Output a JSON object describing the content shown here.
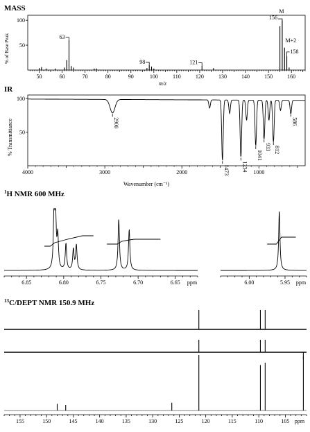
{
  "chart_data": [
    {
      "type": "bar",
      "title": "MASS",
      "xlabel": "m/z",
      "ylabel": "% of Base Peak",
      "xlim": [
        45,
        166
      ],
      "ylim": [
        0,
        110
      ],
      "x_ticks": [
        50,
        60,
        70,
        80,
        90,
        100,
        110,
        120,
        130,
        140,
        150,
        160
      ],
      "y_ticks": [
        50,
        100
      ],
      "peaks": [
        {
          "x": 50,
          "y": 4
        },
        {
          "x": 51,
          "y": 6
        },
        {
          "x": 53,
          "y": 3
        },
        {
          "x": 57,
          "y": 3
        },
        {
          "x": 61,
          "y": 5
        },
        {
          "x": 62,
          "y": 20
        },
        {
          "x": 63,
          "y": 60
        },
        {
          "x": 64,
          "y": 8
        },
        {
          "x": 65,
          "y": 5
        },
        {
          "x": 74,
          "y": 3
        },
        {
          "x": 75,
          "y": 3
        },
        {
          "x": 97,
          "y": 4
        },
        {
          "x": 98,
          "y": 10
        },
        {
          "x": 99,
          "y": 7
        },
        {
          "x": 100,
          "y": 3
        },
        {
          "x": 121,
          "y": 9
        },
        {
          "x": 126,
          "y": 4
        },
        {
          "x": 155,
          "y": 88
        },
        {
          "x": 156,
          "y": 100
        },
        {
          "x": 157,
          "y": 45
        },
        {
          "x": 158,
          "y": 28
        },
        {
          "x": 159,
          "y": 5
        }
      ],
      "annotations": [
        {
          "x": 63,
          "text": "63"
        },
        {
          "x": 98,
          "text": "98"
        },
        {
          "x": 121,
          "text": "121"
        },
        {
          "x": 156,
          "text": "156"
        },
        {
          "x": 158,
          "text": "158"
        }
      ],
      "labels_extra": {
        "molecular_ion": "M",
        "isotope": "M+2"
      }
    },
    {
      "type": "line",
      "title": "IR",
      "xlabel": "Wavenumber (cm⁻¹)",
      "ylabel": "% Transmittance",
      "xlim": [
        4000,
        400
      ],
      "ylim": [
        0,
        105
      ],
      "x_ticks": [
        4000,
        3000,
        2000,
        1000
      ],
      "y_ticks": [
        50,
        100
      ],
      "bands": [
        {
          "x": 2900,
          "depth": 20,
          "label": "2900"
        },
        {
          "x": 1640,
          "depth": 12,
          "label": ""
        },
        {
          "x": 1473,
          "depth": 90,
          "label": "1473"
        },
        {
          "x": 1380,
          "depth": 20,
          "label": ""
        },
        {
          "x": 1234,
          "depth": 85,
          "label": "1234"
        },
        {
          "x": 1160,
          "depth": 30,
          "label": ""
        },
        {
          "x": 1041,
          "depth": 68,
          "label": "1041"
        },
        {
          "x": 933,
          "depth": 58,
          "label": "933"
        },
        {
          "x": 870,
          "depth": 30,
          "label": ""
        },
        {
          "x": 812,
          "depth": 62,
          "label": "812"
        },
        {
          "x": 720,
          "depth": 15,
          "label": ""
        },
        {
          "x": 586,
          "depth": 20,
          "label": "586"
        }
      ]
    },
    {
      "type": "line",
      "title": "H NMR 600 MHz",
      "title_superscript": "1",
      "xlabel": "ppm",
      "panels": [
        {
          "xlim": [
            6.88,
            6.62
          ],
          "x_ticks": [
            6.85,
            6.8,
            6.75,
            6.7,
            6.65
          ]
        },
        {
          "xlim": [
            6.04,
            5.92
          ],
          "x_ticks": [
            6.0,
            5.95
          ]
        }
      ],
      "peaks": [
        {
          "x": 6.813,
          "h": 0.9
        },
        {
          "x": 6.811,
          "h": 0.9
        },
        {
          "x": 6.808,
          "h": 0.55
        },
        {
          "x": 6.797,
          "h": 0.45
        },
        {
          "x": 6.787,
          "h": 0.35
        },
        {
          "x": 6.783,
          "h": 0.42
        },
        {
          "x": 6.726,
          "h": 0.88
        },
        {
          "x": 6.712,
          "h": 0.7
        },
        {
          "x": 5.958,
          "h": 1.0
        }
      ]
    },
    {
      "type": "bar",
      "title": "C/DEPT NMR 150.9 MHz",
      "title_superscript": "13",
      "xlabel": "ppm",
      "xlim": [
        158,
        101
      ],
      "x_ticks": [
        155,
        150,
        145,
        140,
        135,
        130,
        125,
        120,
        115,
        110,
        105
      ],
      "x_tick_last": "ppm",
      "traces": [
        {
          "name": "",
          "peaks": [
            {
              "x": 121.3,
              "h": 1
            },
            {
              "x": 109.7,
              "h": 1
            },
            {
              "x": 108.8,
              "h": 1
            }
          ]
        },
        {
          "name": "",
          "peaks": [
            {
              "x": 121.3,
              "h": 0.9
            },
            {
              "x": 109.7,
              "h": 0.9
            },
            {
              "x": 108.8,
              "h": 0.9
            },
            {
              "x": 101.6,
              "h": -0.5
            }
          ]
        },
        {
          "name": "",
          "peaks": [
            {
              "x": 148.0,
              "h": 0.12
            },
            {
              "x": 146.4,
              "h": 0.1
            },
            {
              "x": 126.4,
              "h": 0.14
            },
            {
              "x": 121.3,
              "h": 1
            },
            {
              "x": 109.7,
              "h": 0.82
            },
            {
              "x": 108.8,
              "h": 0.86
            },
            {
              "x": 101.6,
              "h": 0.98
            }
          ]
        }
      ]
    }
  ]
}
